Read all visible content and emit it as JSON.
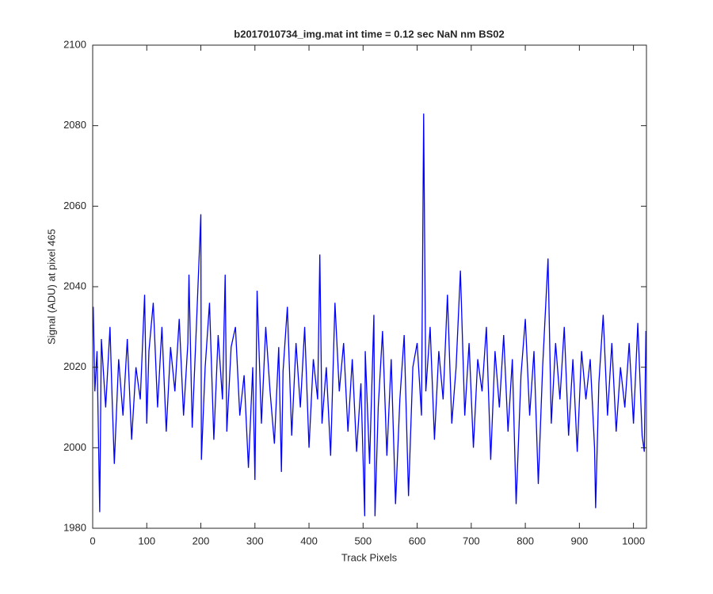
{
  "chart_data": {
    "type": "line",
    "title": "b2017010734_img.mat int time = 0.12 sec  NaN nm BS02",
    "x_label": "Track Pixels",
    "y_label": "Signal (ADU) at pixel 465",
    "x": [
      1,
      4,
      8,
      13,
      16,
      24,
      32,
      36,
      40,
      48,
      56,
      64,
      72,
      80,
      88,
      96,
      100,
      104,
      112,
      120,
      128,
      136,
      144,
      152,
      160,
      168,
      176,
      178,
      184,
      192,
      200,
      201,
      208,
      216,
      224,
      232,
      240,
      245,
      248,
      256,
      264,
      272,
      280,
      288,
      296,
      300,
      304,
      312,
      320,
      328,
      336,
      344,
      349,
      352,
      360,
      368,
      376,
      384,
      392,
      400,
      408,
      416,
      420,
      424,
      432,
      440,
      448,
      456,
      464,
      472,
      480,
      488,
      496,
      503,
      504,
      512,
      520,
      522,
      528,
      536,
      544,
      552,
      560,
      568,
      576,
      584,
      592,
      600,
      608,
      612,
      616,
      624,
      632,
      640,
      648,
      656,
      664,
      672,
      680,
      688,
      696,
      704,
      712,
      720,
      728,
      736,
      744,
      752,
      760,
      768,
      776,
      783,
      792,
      800,
      808,
      816,
      824,
      832,
      842,
      848,
      856,
      864,
      872,
      880,
      888,
      896,
      904,
      912,
      920,
      928,
      930,
      936,
      944,
      952,
      960,
      968,
      976,
      984,
      992,
      1000,
      1008,
      1016,
      1020,
      1023
    ],
    "series": [
      {
        "color": "#0000ff",
        "values": [
          2035,
          2014,
          2024,
          1984,
          2027,
          2010,
          2030,
          2012,
          1996,
          2022,
          2008,
          2027,
          2002,
          2020,
          2012,
          2038,
          2006,
          2024,
          2036,
          2010,
          2030,
          2004,
          2025,
          2014,
          2032,
          2008,
          2026,
          2043,
          2005,
          2031,
          2058,
          1997,
          2020,
          2036,
          2002,
          2028,
          2012,
          2043,
          2004,
          2025,
          2030,
          2008,
          2018,
          1995,
          2020,
          1992,
          2039,
          2006,
          2030,
          2014,
          2001,
          2025,
          1994,
          2019,
          2035,
          2003,
          2026,
          2010,
          2030,
          2000,
          2022,
          2012,
          2048,
          2006,
          2020,
          1998,
          2036,
          2014,
          2026,
          2004,
          2022,
          1999,
          2016,
          1983,
          2024,
          1996,
          2033,
          1983,
          2010,
          2029,
          1998,
          2022,
          1986,
          2012,
          2028,
          1988,
          2020,
          2026,
          2008,
          2083,
          2014,
          2030,
          2002,
          2024,
          2012,
          2038,
          2006,
          2020,
          2044,
          2008,
          2026,
          2000,
          2022,
          2014,
          2030,
          1997,
          2024,
          2010,
          2028,
          2004,
          2022,
          1986,
          2018,
          2032,
          2008,
          2024,
          1991,
          2020,
          2047,
          2006,
          2026,
          2012,
          2030,
          2003,
          2022,
          1999,
          2024,
          2012,
          2022,
          2000,
          1985,
          2016,
          2033,
          2008,
          2026,
          2004,
          2020,
          2010,
          2026,
          2006,
          2031,
          2003,
          1999,
          2029
        ]
      }
    ],
    "xlim": [
      0,
      1024
    ],
    "ylim": [
      1980,
      2100
    ],
    "xticks": [
      0,
      100,
      200,
      300,
      400,
      500,
      600,
      700,
      800,
      900,
      1000
    ],
    "yticks": [
      1980,
      2000,
      2020,
      2040,
      2060,
      2080,
      2100
    ]
  }
}
